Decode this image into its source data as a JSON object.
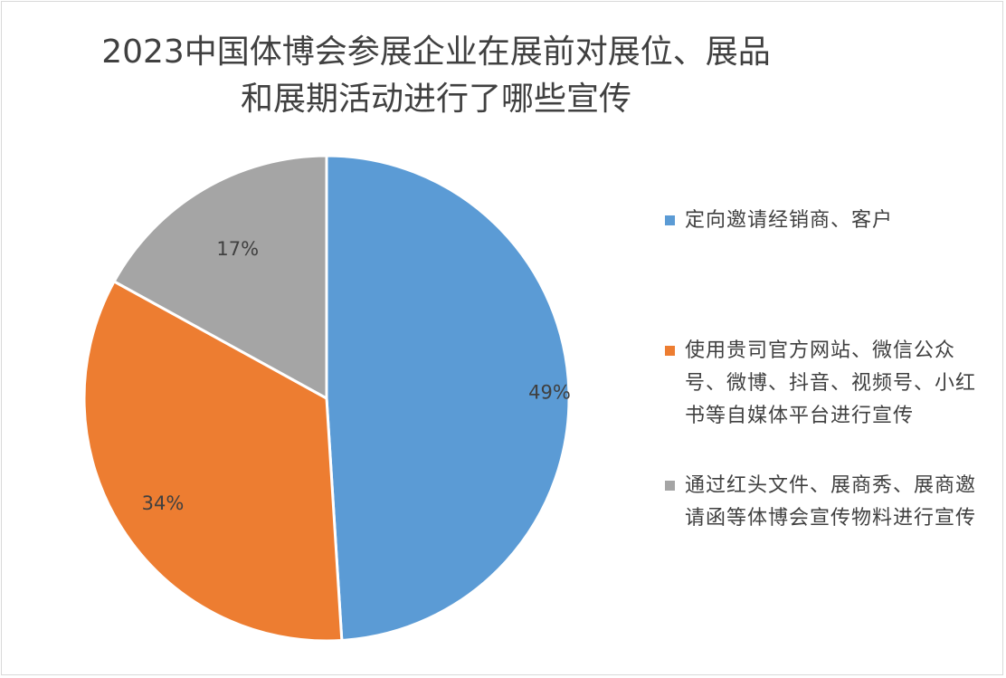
{
  "chart_data": {
    "type": "pie",
    "title_lines": [
      "2023中国体博会参展企业在展前对展位、展品",
      "和展期活动进行了哪些宣传"
    ],
    "slices": [
      {
        "label": "定向邀请经销商、客户",
        "value": 49,
        "data_label": "49%",
        "color": "#5b9bd5"
      },
      {
        "label": "使用贵司官方网站、微信公众号、微博、抖音、视频号、小红书等自媒体平台进行宣传",
        "value": 34,
        "data_label": "34%",
        "color": "#ed7d31"
      },
      {
        "label": "通过红头文件、展商秀、展商邀请函等体博会宣传物料进行宣传",
        "value": 17,
        "data_label": "17%",
        "color": "#a5a5a5"
      }
    ],
    "legend_position": "right"
  }
}
